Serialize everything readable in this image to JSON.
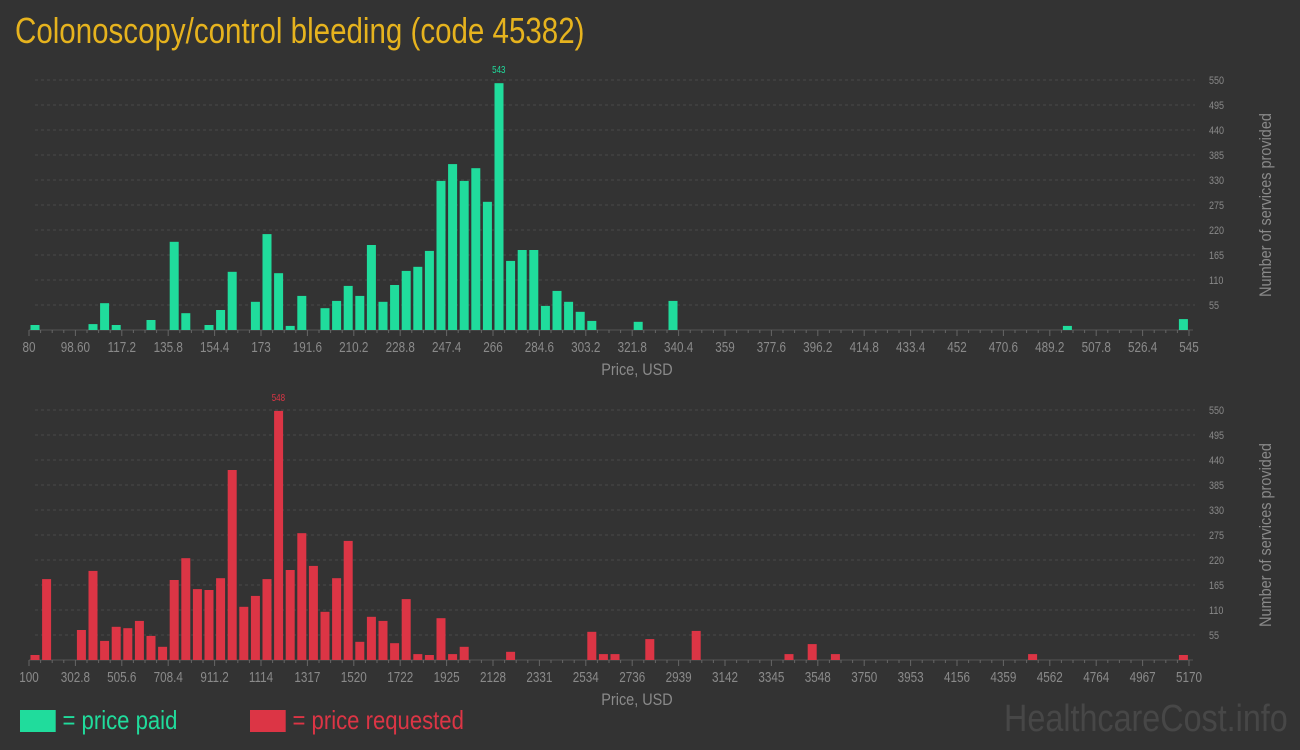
{
  "title": "Colonoscopy/control bleeding (code 45382)",
  "legend": {
    "paid": "= price paid",
    "requested": "= price requested"
  },
  "watermark": "HealthcareCost.info",
  "colors": {
    "paid": "#20dc9c",
    "requested": "#dc3545",
    "title": "#e6b31e",
    "background": "#333333"
  },
  "chart_data": [
    {
      "type": "bar",
      "series": [
        {
          "name": "price paid",
          "values": [
            11,
            0,
            0,
            0,
            0,
            13,
            59,
            11,
            0,
            0,
            22,
            0,
            194,
            37,
            0,
            11,
            44,
            128,
            0,
            62,
            211,
            125,
            9,
            75,
            0,
            48,
            64,
            97,
            75,
            187,
            62,
            99,
            130,
            139,
            174,
            328,
            365,
            328,
            356,
            282,
            543,
            152,
            176,
            176,
            53,
            86,
            62,
            40,
            20,
            0,
            0,
            0,
            18,
            0,
            0,
            64,
            0,
            0,
            0,
            0,
            0,
            0,
            0,
            0,
            0,
            0,
            0,
            0,
            0,
            0,
            0,
            0,
            0,
            0,
            0,
            0,
            0,
            0,
            0,
            0,
            0,
            0,
            0,
            0,
            0,
            0,
            0,
            0,
            0,
            9,
            0,
            0,
            0,
            0,
            0,
            0,
            0,
            0,
            0,
            24
          ]
        }
      ],
      "xlim": [
        80,
        545
      ],
      "xticks": [
        "80",
        "98.60",
        "117.2",
        "135.8",
        "154.4",
        "173",
        "191.6",
        "210.2",
        "228.8",
        "247.4",
        "266",
        "284.6",
        "303.2",
        "321.8",
        "340.4",
        "359",
        "377.6",
        "396.2",
        "414.8",
        "433.4",
        "452",
        "470.6",
        "489.2",
        "507.8",
        "526.4",
        "545"
      ],
      "ylim": [
        0,
        550
      ],
      "yticks": [
        "55",
        "110",
        "165",
        "220",
        "275",
        "330",
        "385",
        "440",
        "495",
        "550"
      ],
      "xlabel": "Price, USD",
      "ylabel": "Number of services provided",
      "peak_label": "543",
      "grid": true
    },
    {
      "type": "bar",
      "series": [
        {
          "name": "price requested",
          "values": [
            11,
            178,
            0,
            0,
            66,
            196,
            42,
            73,
            70,
            86,
            53,
            29,
            176,
            224,
            156,
            154,
            180,
            418,
            117,
            141,
            178,
            548,
            198,
            279,
            207,
            106,
            180,
            262,
            40,
            95,
            86,
            37,
            134,
            13,
            11,
            92,
            13,
            29,
            0,
            0,
            0,
            18,
            0,
            0,
            0,
            0,
            0,
            0,
            62,
            13,
            13,
            0,
            0,
            46,
            0,
            0,
            0,
            64,
            0,
            0,
            0,
            0,
            0,
            0,
            0,
            13,
            0,
            35,
            0,
            13,
            0,
            0,
            0,
            0,
            0,
            0,
            0,
            0,
            0,
            0,
            0,
            0,
            0,
            0,
            0,
            0,
            13,
            0,
            0,
            0,
            0,
            0,
            0,
            0,
            0,
            0,
            0,
            0,
            0,
            11
          ]
        }
      ],
      "xlim": [
        100,
        5170
      ],
      "xticks": [
        "100",
        "302.8",
        "505.6",
        "708.4",
        "911.2",
        "1114",
        "1317",
        "1520",
        "1722",
        "1925",
        "2128",
        "2331",
        "2534",
        "2736",
        "2939",
        "3142",
        "3345",
        "3548",
        "3750",
        "3953",
        "4156",
        "4359",
        "4562",
        "4764",
        "4967",
        "5170"
      ],
      "ylim": [
        0,
        550
      ],
      "yticks": [
        "55",
        "110",
        "165",
        "220",
        "275",
        "330",
        "385",
        "440",
        "495",
        "550"
      ],
      "xlabel": "Price, USD",
      "ylabel": "Number of services provided",
      "peak_label": "548",
      "grid": true
    }
  ]
}
